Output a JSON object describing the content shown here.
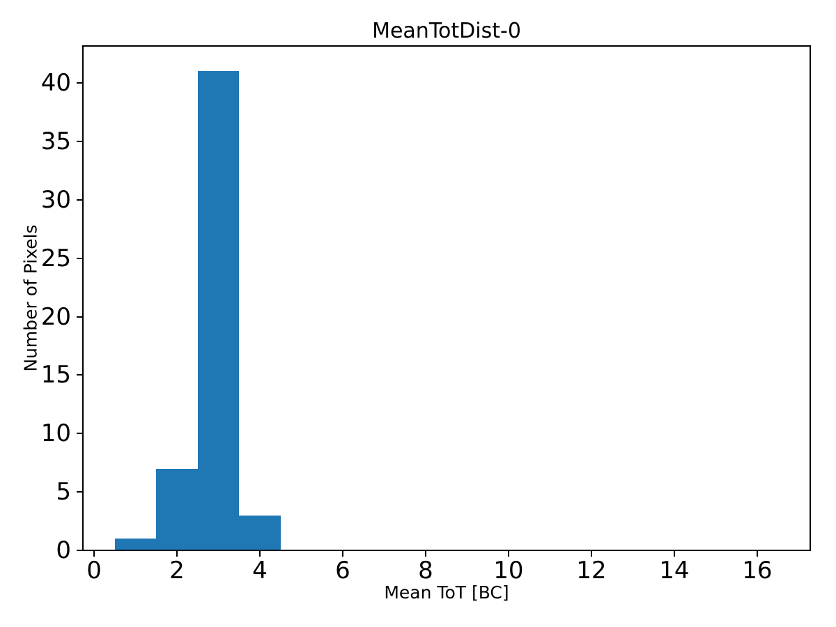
{
  "chart_data": {
    "type": "bar",
    "subtype": "histogram",
    "title": "MeanTotDist-0",
    "xlabel": "Mean ToT [BC]",
    "ylabel": "Number of Pixels",
    "bin_edges": [
      0.5,
      1.5,
      2.5,
      3.5,
      4.5
    ],
    "counts": [
      1,
      7,
      41,
      3
    ],
    "x_ticks": [
      0,
      2,
      4,
      6,
      8,
      10,
      12,
      14,
      16
    ],
    "y_ticks": [
      0,
      5,
      10,
      15,
      20,
      25,
      30,
      35,
      40
    ],
    "xlim": [
      -0.27,
      17.28
    ],
    "ylim": [
      0,
      43.16
    ],
    "bar_color": "#1f77b4",
    "axes_color": "#000000",
    "background_color": "#ffffff",
    "grid": false,
    "legend": null
  }
}
